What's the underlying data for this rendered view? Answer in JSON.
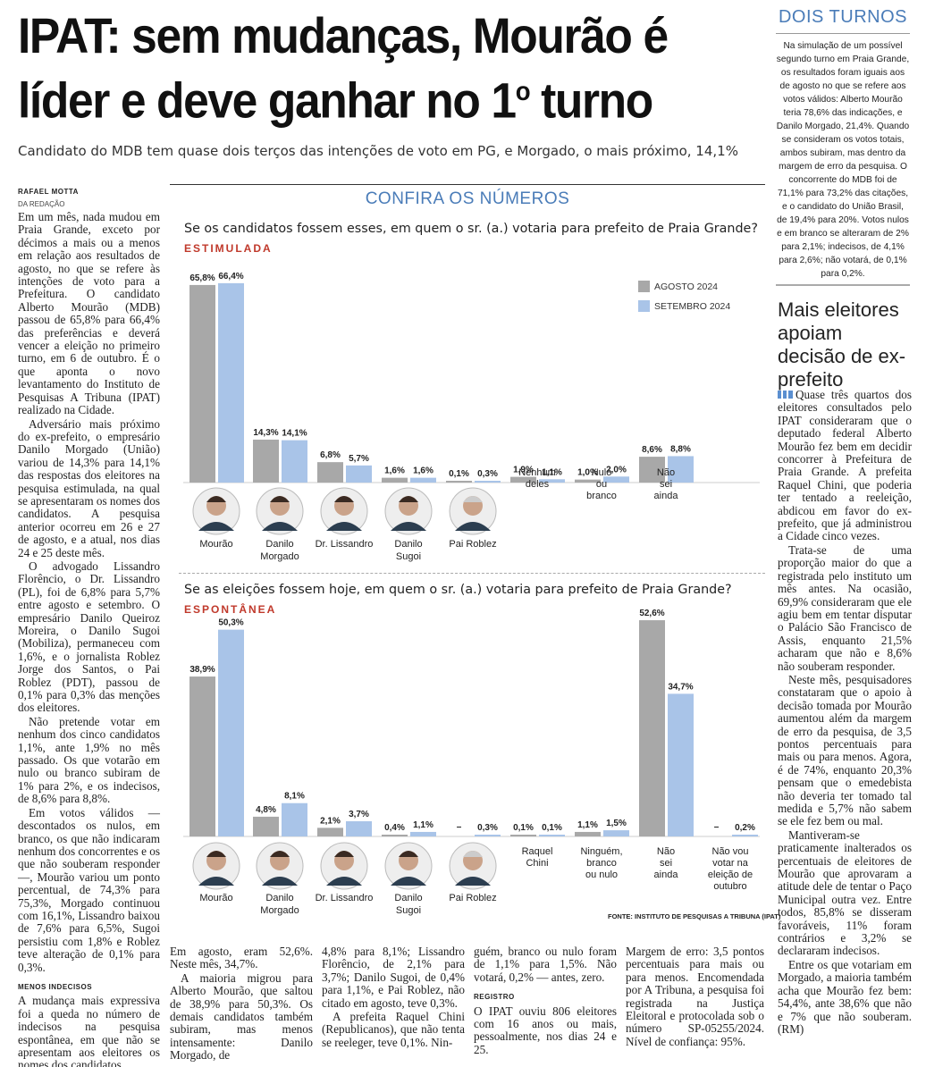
{
  "article": {
    "headline_line1": "IPAT: sem mudanças, Mourão é",
    "headline_line2": "líder e deve ganhar no 1",
    "headline_sup": "o",
    "headline_end": " turno",
    "subhead": "Candidato do MDB tem quase dois terços das intenções de voto em PG, e Morgado, o mais próximo, 14,1%",
    "byline": "RAFAEL MOTTA",
    "byline_role": "DA REDAÇÃO",
    "col1": [
      "Em um mês, nada mudou em Praia Grande, exceto por décimos a mais ou a menos em relação aos resultados de agosto, no que se refere às intenções de voto para a Prefeitura. O candidato Alberto Mourão (MDB) passou de 65,8% para 66,4% das preferências e deverá vencer a eleição no primeiro turno, em 6 de outubro. É o que aponta o novo levantamento do Instituto de Pesquisas A Tribuna (IPAT) realizado na Cidade.",
      "Adversário mais próximo do ex-prefeito, o empresário Danilo Morgado (União) variou de 14,3% para 14,1% das respostas dos eleitores na pesquisa estimulada, na qual se apresentaram os nomes dos candidatos. A pesquisa anterior ocorreu em 26 e 27 de agosto, e a atual, nos dias 24 e 25 deste mês.",
      "O advogado Lissandro Florêncio, o Dr. Lissandro (PL), foi de 6,8% para 5,7% entre agosto e setembro. O empresário Danilo Queiroz Moreira, o Danilo Sugoi (Mobiliza), permaneceu com 1,6%, e o jornalista Roblez Jorge dos Santos, o Pai Roblez (PDT), passou de 0,1% para 0,3% das menções dos eleitores.",
      "Não pretende votar em nenhum dos cinco candidatos 1,1%, ante 1,9% no mês passado. Os que votarão em nulo ou branco subiram de 1% para 2%, e os indecisos, de 8,6% para 8,8%.",
      "Em votos válidos — descontados os nulos, em branco, os que não indicaram nenhum dos concorrentes e os que não souberam responder —, Mourão variou um ponto percentual, de 74,3% para 75,3%, Morgado continuou com 16,1%, Lissandro baixou de 7,6% para 6,5%, Sugoi persistiu com 1,8% e Roblez teve alteração de 0,1% para 0,3%."
    ],
    "menos_label": "MENOS INDECISOS",
    "menos_text": "A mudança mais expressiva foi a queda no número de indecisos na pesquisa espontânea, em que não se apresentam aos eleitores os nomes dos candidatos.",
    "bottom_col1": "Em agosto, eram 52,6%. Neste mês, 34,7%.",
    "bottom_col1b": "A maioria migrou para Alberto Mourão, que saltou de 38,9% para 50,3%. Os demais candidatos também subiram, mas menos intensamente: Danilo Morgado, de",
    "bottom_col2": "4,8% para 8,1%; Lissandro Florêncio, de 2,1% para 3,7%; Danilo Sugoi, de 0,4% para 1,1%, e Pai Roblez, não citado em agosto, teve 0,3%.",
    "bottom_col2b": "A prefeita Raquel Chini (Republicanos), que não tenta se reeleger, teve 0,1%. Nin-",
    "bottom_col3": "guém, branco ou nulo foram de 1,1% para 1,5%. Não votará, 0,2% — antes, zero.",
    "registro_label": "REGISTRO",
    "bottom_col3b": "O IPAT ouviu 806 eleitores com 16 anos ou mais, pessoalmente, nos dias 24 e 25.",
    "bottom_col4": "Margem de erro: 3,5 pontos percentuais para mais ou para menos. Encomendada por A Tribuna, a pesquisa foi registrada na Justiça Eleitoral e protocolada sob o número SP-05255/2024. Nível de confiança: 95%."
  },
  "sidebar": {
    "title": "DOIS TURNOS",
    "box_text": "Na simulação de um possível segundo turno em Praia Grande, os resultados foram iguais aos de agosto no que se refere aos votos válidos: Alberto Mourão teria 78,6% das indicações, e Danilo Morgado, 21,4%. Quando se consideram os votos totais, ambos subiram, mas dentro da margem de erro da pesquisa. O concorrente do MDB foi de 71,1% para 73,2% das citações, e o candidato do União Brasil, de 19,4% para 20%. Votos nulos e em branco se alteraram de 2% para 2,1%; indecisos, de 4,1% para 2,6%; não votará, de 0,1% para 0,2%.",
    "headline": "Mais eleitores apoiam decisão de ex-prefeito",
    "paragraphs": [
      "Quase três quartos dos eleitores consultados pelo IPAT consideraram que o deputado federal Alberto Mourão fez bem em decidir concorrer à Prefeitura de Praia Grande. A prefeita Raquel Chini, que poderia ter tentado a reeleição, abdicou em favor do ex-prefeito, que já administrou a Cidade cinco vezes.",
      "Trata-se de uma proporção maior do que a registrada pelo instituto um mês antes. Na ocasião, 69,9% consideraram que ele agiu bem em tentar disputar o Palácio São Francisco de Assis, enquanto 21,5% acharam que não e 8,6% não souberam responder.",
      "Neste mês, pesquisadores constataram que o apoio à decisão tomada por Mourão aumentou além da margem de erro da pesquisa, de 3,5 pontos percentuais para mais ou para menos. Agora, é de 74%, enquanto 20,3% pensam que o emedebista não deveria ter tomado tal medida e 5,7% não sabem se ele fez bem ou mal.",
      "Mantiveram-se praticamente inalterados os percentuais de eleitores de Mourão que aprovaram a atitude dele de tentar o Paço Municipal outra vez. Entre todos, 85,8% se disseram favoráveis, 11% foram contrários e 3,2% se declararam indecisos.",
      "Entre os que votariam em Morgado, a maioria também acha que Mourão fez bem: 54,4%, ante 38,6% que não e 7% que não souberam. (RM)"
    ]
  },
  "chart_section": {
    "title": "CONFIRA OS NÚMEROS",
    "q1": "Se os candidatos fossem esses, em quem o sr. (a.) votaria para prefeito de Praia Grande?",
    "q1_tag": "ESTIMULADA",
    "q2": "Se as eleições fossem hoje, em quem o sr. (a.) votaria para prefeito de Praia Grande?",
    "q2_tag": "ESPONTÂNEA",
    "legend": [
      "AGOSTO 2024",
      "SETEMBRO 2024"
    ],
    "source": "FONTE: INSTITUTO DE PESQUISAS A TRIBUNA (IPAT)",
    "colors": {
      "agosto": "#a8a8a8",
      "setembro": "#a9c4e8",
      "accent": "#4a7cb8",
      "tag": "#c0392b"
    }
  },
  "chart_data": [
    {
      "type": "bar",
      "title": "Se os candidatos fossem esses, em quem o sr. (a.) votaria para prefeito de Praia Grande?",
      "categories": [
        "Mourão",
        "Danilo Morgado",
        "Dr. Lissandro",
        "Danilo Sugoi",
        "Pai Roblez",
        "Nenhum deles",
        "Nulo ou branco",
        "Não sei ainda"
      ],
      "series": [
        {
          "name": "AGOSTO 2024",
          "values": [
            65.8,
            14.3,
            6.8,
            1.6,
            0.1,
            1.9,
            1.0,
            8.6
          ],
          "labels": [
            "65,8%",
            "14,3%",
            "6,8%",
            "1,6%",
            "0,1%",
            "1,9%",
            "1,0%",
            "8,6%"
          ]
        },
        {
          "name": "SETEMBRO 2024",
          "values": [
            66.4,
            14.1,
            5.7,
            1.6,
            0.3,
            1.1,
            2.0,
            8.8
          ],
          "labels": [
            "66,4%",
            "14,1%",
            "5,7%",
            "1,6%",
            "0,3%",
            "1,1%",
            "2,0%",
            "8,8%"
          ]
        }
      ]
    },
    {
      "type": "bar",
      "title": "Se as eleições fossem hoje, em quem o sr. (a.) votaria para prefeito de Praia Grande?",
      "categories": [
        "Mourão",
        "Danilo Morgado",
        "Dr. Lissandro",
        "Danilo Sugoi",
        "Pai Roblez",
        "Raquel Chini",
        "Ninguém, branco ou nulo",
        "Não sei ainda",
        "Não vou votar na eleição de outubro"
      ],
      "series": [
        {
          "name": "AGOSTO 2024",
          "values": [
            38.9,
            4.8,
            2.1,
            0.4,
            null,
            0.1,
            1.1,
            52.6,
            null
          ],
          "labels": [
            "38,9%",
            "4,8%",
            "2,1%",
            "0,4%",
            "–",
            "0,1%",
            "1,1%",
            "52,6%",
            "–"
          ]
        },
        {
          "name": "SETEMBRO 2024",
          "values": [
            50.3,
            8.1,
            3.7,
            1.1,
            0.3,
            0.1,
            1.5,
            34.7,
            0.2
          ],
          "labels": [
            "50,3%",
            "8,1%",
            "3,7%",
            "1,1%",
            "0,3%",
            "0,1%",
            "1,5%",
            "34,7%",
            "0,2%"
          ]
        }
      ]
    }
  ]
}
